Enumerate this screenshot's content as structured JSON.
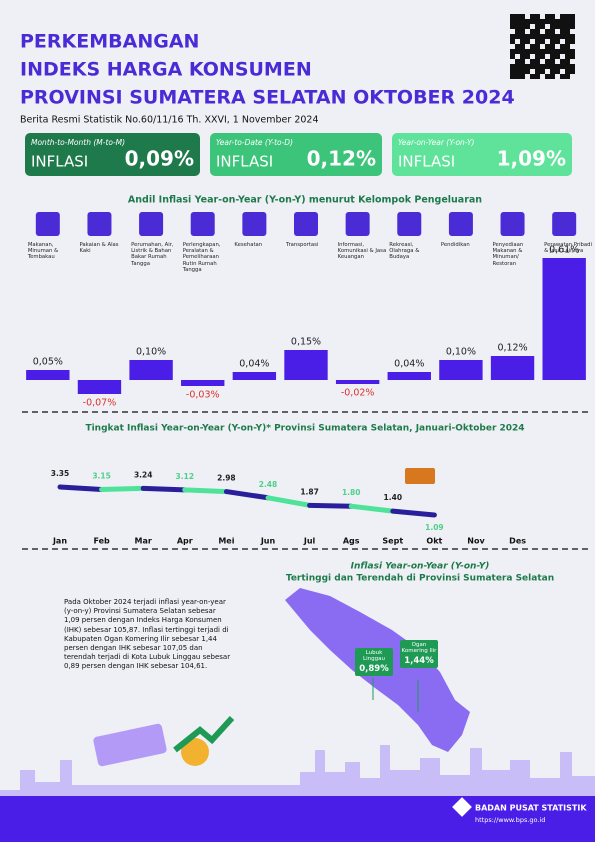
{
  "header": {
    "title_lines": [
      "PERKEMBANGAN",
      "INDEKS HARGA KONSUMEN",
      "PROVINSI SUMATERA SELATAN OKTOBER 2024"
    ],
    "subtitle": "Berita Resmi Statistik No.60/11/16 Th. XXVI, 1 November 2024"
  },
  "inflation_boxes": [
    {
      "label": "Month-to-Month (M-to-M)",
      "text": "INFLASI",
      "value": "0,09%"
    },
    {
      "label": "Year-to-Date (Y-to-D)",
      "text": "INFLASI",
      "value": "0,12%"
    },
    {
      "label": "Year-on-Year (Y-on-Y)",
      "text": "INFLASI",
      "value": "1,09%"
    }
  ],
  "chart_data": [
    {
      "type": "bar",
      "title": "Andil Inflasi Year-on-Year (Y-on-Y) menurut Kelompok Pengeluaran",
      "categories": [
        "Makanan, Minuman & Tembakau",
        "Pakaian & Alas Kaki",
        "Perumahan, Air, Listrik & Bahan Bakar Rumah Tangga",
        "Perlengkapan, Peralatan & Pemeliharaan Rutin Rumah Tangga",
        "Kesehatan",
        "Transportasi",
        "Informasi, Komunikasi & Jasa Keuangan",
        "Rekreasi, Olahraga & Budaya",
        "Pendidikan",
        "Penyediaan Makanan & Minuman/ Restoran",
        "Perawatan Pribadi & Jasa Lainnya"
      ],
      "values": [
        0.05,
        -0.07,
        0.1,
        -0.03,
        0.04,
        0.15,
        -0.02,
        0.04,
        0.1,
        0.12,
        0.61
      ],
      "value_labels": [
        "0,05%",
        "-0,07%",
        "0,10%",
        "-0,03%",
        "0,04%",
        "0,15%",
        "-0,02%",
        "0,04%",
        "0,10%",
        "0,12%",
        "0,61%"
      ],
      "color": "#4a1ee6",
      "negative_label_color": "#e0322b"
    },
    {
      "type": "line",
      "title": "Tingkat Inflasi Year-on-Year (Y-on-Y)* Provinsi Sumatera Selatan, Januari-Oktober 2024",
      "categories": [
        "Jan",
        "Feb",
        "Mar",
        "Apr",
        "Mei",
        "Jun",
        "Jul",
        "Ags",
        "Sept",
        "Okt",
        "Nov",
        "Des"
      ],
      "values": [
        3.35,
        3.15,
        3.24,
        3.12,
        2.98,
        2.48,
        1.87,
        1.8,
        1.4,
        1.09,
        null,
        null
      ],
      "value_labels": [
        "3.35",
        "3.15",
        "3.24",
        "3.12",
        "2.98",
        "2.48",
        "1.87",
        "1.80",
        "1.40",
        "1.09",
        null,
        null
      ],
      "colors": [
        "#2a1f9a",
        "#4fe39a"
      ]
    }
  ],
  "regional": {
    "title": "Inflasi Year-on-Year (Y-on-Y)",
    "subtitle": "Tertinggi dan Terendah di Provinsi Sumatera Selatan",
    "paragraph": "Pada Oktober 2024 terjadi inflasi year-on-year (y-on-y) Provinsi Sumatera Selatan sebesar 1,09 persen dengan Indeks Harga Konsumen (IHK) sebesar 105,87. Inflasi tertinggi terjadi di Kabupaten Ogan Komering Ilir sebesar 1,44 persen dengan IHK sebesar 107,05 dan terendah terjadi di Kota Lubuk Linggau sebesar 0,89 persen dengan IHK sebesar 104,61.",
    "lowest": {
      "name": "Lubuk Linggau",
      "value": "0,89%"
    },
    "highest": {
      "name": "Ogan Komering Ilir",
      "value": "1,44%"
    }
  },
  "footer": {
    "org": "BADAN PUSAT STATISTIK",
    "url": "https://www.bps.go.id"
  }
}
